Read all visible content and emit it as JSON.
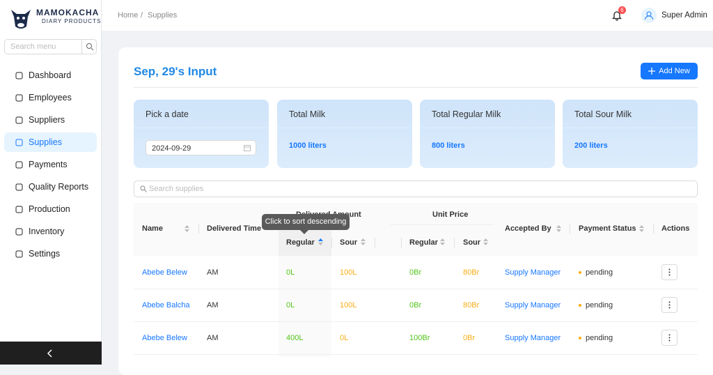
{
  "brand": {
    "name": "MAMOKACHA",
    "tagline": "DIARY PRODUCTS"
  },
  "sidebar": {
    "search_placeholder": "Search menu",
    "menu": [
      "Dashboard",
      "Employees",
      "Suppliers",
      "Supplies",
      "Payments",
      "Quality Reports",
      "Production",
      "Inventory",
      "Settings"
    ],
    "active": 3
  },
  "header": {
    "breadcrumb": [
      "Home",
      "/",
      "Supplies"
    ],
    "notifications": "6",
    "user": "Super Admin"
  },
  "page": {
    "title": "Sep, 29's Input",
    "add_button": "Add New"
  },
  "date_card": {
    "label": "Pick a date",
    "value": "2024-09-29"
  },
  "stats": [
    {
      "label": "Total Milk",
      "value": "1000 liters"
    },
    {
      "label": "Total Regular Milk",
      "value": "800 liters"
    },
    {
      "label": "Total Sour Milk",
      "value": "200 liters"
    }
  ],
  "search_placeholder": "Search supplies",
  "table": {
    "headers": {
      "name": "Name",
      "delivered_time": "Delivered Time",
      "delivered_amount": "Delivered Amount",
      "unit_price": "Unit Price",
      "accepted_by": "Accepted By",
      "payment_status": "Payment Status",
      "actions": "Actions"
    },
    "amount_columns": [
      "Regular",
      "Sour"
    ],
    "price_columns": [
      "Regular",
      "Sour"
    ],
    "rows": [
      [
        "Abebe Belew",
        "AM",
        "0L",
        "100L",
        "0Br",
        "80Br",
        "Supply Manager",
        "pending"
      ],
      [
        "Abebe Balcha",
        "AM",
        "0L",
        "100L",
        "0Br",
        "80Br",
        "Supply Manager",
        "pending"
      ],
      [
        "Abebe Belew",
        "AM",
        "400L",
        "0L",
        "100Br",
        "0Br",
        "Supply Manager",
        "pending"
      ]
    ]
  },
  "tooltip": "Click to sort descending"
}
